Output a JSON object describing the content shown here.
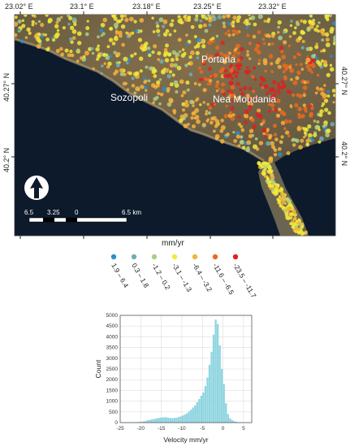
{
  "map": {
    "lon_ticks": [
      "23.02° E",
      "23.1° E",
      "23.18° E",
      "23.25° E",
      "23.32° E"
    ],
    "lat_ticks": [
      "40.27° N",
      "40.2° N"
    ],
    "places": [
      "Portaria",
      "Nea Moudania",
      "Sozopoli"
    ],
    "scalebar": {
      "labels": [
        "6.5",
        "3.25",
        "0",
        "6.5 km"
      ]
    },
    "north_arrow_icon": "north-arrow-icon",
    "colors": {
      "sea": "#0c1a2b",
      "land": "#7a6a4a"
    }
  },
  "legend": {
    "title": "mm/yr",
    "classes": [
      {
        "label": "1.9 – 6.4",
        "color": "#2a8fc9"
      },
      {
        "label": "0.3 – 1.8",
        "color": "#6fb0b6"
      },
      {
        "label": "-1.2 – 0.2",
        "color": "#a8d08a"
      },
      {
        "label": "-3.1 – -1.3",
        "color": "#f2ea3a"
      },
      {
        "label": "-6.4 – -3.2",
        "color": "#f4b33c"
      },
      {
        "label": "-11.6 – -6.5",
        "color": "#ec6a1f"
      },
      {
        "label": "-23.5 – -11.7",
        "color": "#e02020"
      }
    ]
  },
  "chart_data": {
    "type": "bar",
    "xlabel": "Velocity mm/yr",
    "ylabel": "Count",
    "xlim": [
      -25,
      7
    ],
    "ylim": [
      0,
      5000
    ],
    "xticks": [
      -25,
      -20,
      -15,
      -10,
      -5,
      0,
      5
    ],
    "yticks": [
      0,
      500,
      1000,
      1500,
      2000,
      2500,
      3000,
      3500,
      4000,
      4500,
      5000
    ],
    "grid": true,
    "bar_color": "#8fd5e0",
    "bin_width": 0.5,
    "bins": [
      [
        -22,
        15
      ],
      [
        -21.5,
        20
      ],
      [
        -21,
        25
      ],
      [
        -20.5,
        30
      ],
      [
        -20,
        40
      ],
      [
        -19.5,
        60
      ],
      [
        -19,
        80
      ],
      [
        -18.5,
        110
      ],
      [
        -18,
        130
      ],
      [
        -17.5,
        150
      ],
      [
        -17,
        170
      ],
      [
        -16.5,
        190
      ],
      [
        -16,
        210
      ],
      [
        -15.5,
        230
      ],
      [
        -15,
        240
      ],
      [
        -14.5,
        250
      ],
      [
        -14,
        250
      ],
      [
        -13.5,
        230
      ],
      [
        -13,
        220
      ],
      [
        -12.5,
        210
      ],
      [
        -12,
        220
      ],
      [
        -11.5,
        230
      ],
      [
        -11,
        260
      ],
      [
        -10.5,
        290
      ],
      [
        -10,
        330
      ],
      [
        -9.5,
        380
      ],
      [
        -9,
        430
      ],
      [
        -8.5,
        520
      ],
      [
        -8,
        600
      ],
      [
        -7.5,
        700
      ],
      [
        -7,
        800
      ],
      [
        -6.5,
        950
      ],
      [
        -6,
        1100
      ],
      [
        -5.5,
        1250
      ],
      [
        -5,
        1400
      ],
      [
        -4.5,
        1700
      ],
      [
        -4,
        2100
      ],
      [
        -3.5,
        2700
      ],
      [
        -3,
        3300
      ],
      [
        -2.5,
        4100
      ],
      [
        -2,
        4800
      ],
      [
        -1.5,
        4600
      ],
      [
        -1,
        3600
      ],
      [
        -0.5,
        2500
      ],
      [
        0,
        1800
      ],
      [
        0.5,
        900
      ],
      [
        1,
        400
      ],
      [
        1.5,
        200
      ],
      [
        2,
        120
      ],
      [
        2.5,
        70
      ],
      [
        3,
        40
      ],
      [
        3.5,
        20
      ],
      [
        4,
        10
      ]
    ]
  }
}
